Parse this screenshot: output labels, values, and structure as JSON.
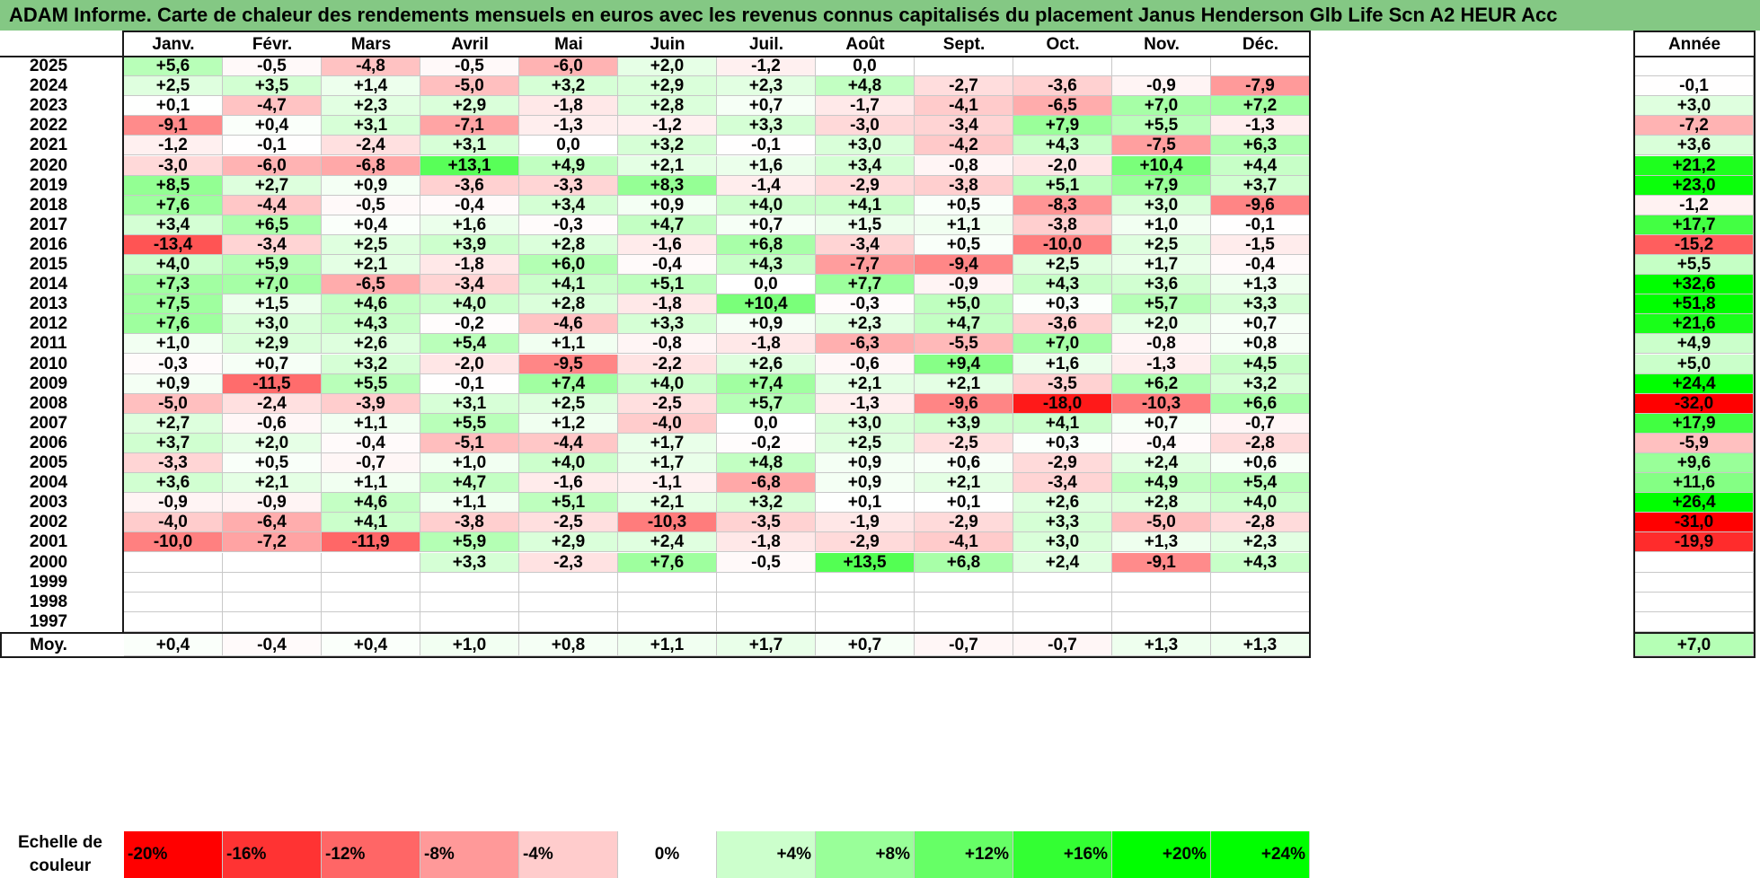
{
  "chart_data": {
    "type": "heatmap",
    "title": "ADAM Informe. Carte de chaleur des rendements mensuels en euros avec les revenus connus capitalisés du placement Janus Henderson Glb Life Scn A2 HEUR Acc",
    "months": [
      "Janv.",
      "Févr.",
      "Mars",
      "Avril",
      "Mai",
      "Juin",
      "Juil.",
      "Août",
      "Sept.",
      "Oct.",
      "Nov.",
      "Déc."
    ],
    "annual_header": "Année",
    "rows": [
      {
        "year": "2025",
        "values": [
          5.6,
          -0.5,
          -4.8,
          -0.5,
          -6.0,
          2.0,
          -1.2,
          0.0,
          null,
          null,
          null,
          null
        ],
        "annual": null
      },
      {
        "year": "2024",
        "values": [
          2.5,
          3.5,
          1.4,
          -5.0,
          3.2,
          2.9,
          2.3,
          4.8,
          -2.7,
          -3.6,
          -0.9,
          -7.9
        ],
        "annual": -0.1
      },
      {
        "year": "2023",
        "values": [
          0.1,
          -4.7,
          2.3,
          2.9,
          -1.8,
          2.8,
          0.7,
          -1.7,
          -4.1,
          -6.5,
          7.0,
          7.2
        ],
        "annual": 3.0
      },
      {
        "year": "2022",
        "values": [
          -9.1,
          0.4,
          3.1,
          -7.1,
          -1.3,
          -1.2,
          3.3,
          -3.0,
          -3.4,
          7.9,
          5.5,
          -1.3
        ],
        "annual": -7.2
      },
      {
        "year": "2021",
        "values": [
          -1.2,
          -0.1,
          -2.4,
          3.1,
          0.0,
          3.2,
          -0.1,
          3.0,
          -4.2,
          4.3,
          -7.5,
          6.3
        ],
        "annual": 3.6
      },
      {
        "year": "2020",
        "values": [
          -3.0,
          -6.0,
          -6.8,
          13.1,
          4.9,
          2.1,
          1.6,
          3.4,
          -0.8,
          -2.0,
          10.4,
          4.4
        ],
        "annual": 21.2
      },
      {
        "year": "2019",
        "values": [
          8.5,
          2.7,
          0.9,
          -3.6,
          -3.3,
          8.3,
          -1.4,
          -2.9,
          -3.8,
          5.1,
          7.9,
          3.7
        ],
        "annual": 23.0
      },
      {
        "year": "2018",
        "values": [
          7.6,
          -4.4,
          -0.5,
          -0.4,
          3.4,
          0.9,
          4.0,
          4.1,
          0.5,
          -8.3,
          3.0,
          -9.6
        ],
        "annual": -1.2
      },
      {
        "year": "2017",
        "values": [
          3.4,
          6.5,
          0.4,
          1.6,
          -0.3,
          4.7,
          0.7,
          1.5,
          1.1,
          -3.8,
          1.0,
          -0.1
        ],
        "annual": 17.7
      },
      {
        "year": "2016",
        "values": [
          -13.4,
          -3.4,
          2.5,
          3.9,
          2.8,
          -1.6,
          6.8,
          -3.4,
          0.5,
          -10.0,
          2.5,
          -1.5
        ],
        "annual": -15.2
      },
      {
        "year": "2015",
        "values": [
          4.0,
          5.9,
          2.1,
          -1.8,
          6.0,
          -0.4,
          4.3,
          -7.7,
          -9.4,
          2.5,
          1.7,
          -0.4
        ],
        "annual": 5.5
      },
      {
        "year": "2014",
        "values": [
          7.3,
          7.0,
          -6.5,
          -3.4,
          4.1,
          5.1,
          0.0,
          7.7,
          -0.9,
          4.3,
          3.6,
          1.3
        ],
        "annual": 32.6
      },
      {
        "year": "2013",
        "values": [
          7.5,
          1.5,
          4.6,
          4.0,
          2.8,
          -1.8,
          10.4,
          -0.3,
          5.0,
          0.3,
          5.7,
          3.3
        ],
        "annual": 51.8
      },
      {
        "year": "2012",
        "values": [
          7.6,
          3.0,
          4.3,
          -0.2,
          -4.6,
          3.3,
          0.9,
          2.3,
          4.7,
          -3.6,
          2.0,
          0.7
        ],
        "annual": 21.6
      },
      {
        "year": "2011",
        "values": [
          1.0,
          2.9,
          2.6,
          5.4,
          1.1,
          -0.8,
          -1.8,
          -6.3,
          -5.5,
          7.0,
          -0.8,
          0.8
        ],
        "annual": 4.9
      },
      {
        "year": "2010",
        "values": [
          -0.3,
          0.7,
          3.2,
          -2.0,
          -9.5,
          -2.2,
          2.6,
          -0.6,
          9.4,
          1.6,
          -1.3,
          4.5
        ],
        "annual": 5.0
      },
      {
        "year": "2009",
        "values": [
          0.9,
          -11.5,
          5.5,
          -0.1,
          7.4,
          4.0,
          7.4,
          2.1,
          2.1,
          -3.5,
          6.2,
          3.2
        ],
        "annual": 24.4
      },
      {
        "year": "2008",
        "values": [
          -5.0,
          -2.4,
          -3.9,
          3.1,
          2.5,
          -2.5,
          5.7,
          -1.3,
          -9.6,
          -18.0,
          -10.3,
          6.6
        ],
        "annual": -32.0
      },
      {
        "year": "2007",
        "values": [
          2.7,
          -0.6,
          1.1,
          5.5,
          1.2,
          -4.0,
          0.0,
          3.0,
          3.9,
          4.1,
          0.7,
          -0.7
        ],
        "annual": 17.9
      },
      {
        "year": "2006",
        "values": [
          3.7,
          2.0,
          -0.4,
          -5.1,
          -4.4,
          1.7,
          -0.2,
          2.5,
          -2.5,
          0.3,
          -0.4,
          -2.8
        ],
        "annual": -5.9
      },
      {
        "year": "2005",
        "values": [
          -3.3,
          0.5,
          -0.7,
          1.0,
          4.0,
          1.7,
          4.8,
          0.9,
          0.6,
          -2.9,
          2.4,
          0.6
        ],
        "annual": 9.6
      },
      {
        "year": "2004",
        "values": [
          3.6,
          2.1,
          1.1,
          4.7,
          -1.6,
          -1.1,
          -6.8,
          0.9,
          2.1,
          -3.4,
          4.9,
          5.4
        ],
        "annual": 11.6
      },
      {
        "year": "2003",
        "values": [
          -0.9,
          -0.9,
          4.6,
          1.1,
          5.1,
          2.1,
          3.2,
          0.1,
          0.1,
          2.6,
          2.8,
          4.0
        ],
        "annual": 26.4
      },
      {
        "year": "2002",
        "values": [
          -4.0,
          -6.4,
          4.1,
          -3.8,
          -2.5,
          -10.3,
          -3.5,
          -1.9,
          -2.9,
          3.3,
          -5.0,
          -2.8
        ],
        "annual": -31.0
      },
      {
        "year": "2001",
        "values": [
          -10.0,
          -7.2,
          -11.9,
          5.9,
          2.9,
          2.4,
          -1.8,
          -2.9,
          -4.1,
          3.0,
          1.3,
          2.3
        ],
        "annual": -19.9
      },
      {
        "year": "2000",
        "values": [
          null,
          null,
          null,
          3.3,
          -2.3,
          7.6,
          -0.5,
          13.5,
          6.8,
          2.4,
          -9.1,
          4.3
        ],
        "annual": null
      },
      {
        "year": "1999",
        "values": [
          null,
          null,
          null,
          null,
          null,
          null,
          null,
          null,
          null,
          null,
          null,
          null
        ],
        "annual": null
      },
      {
        "year": "1998",
        "values": [
          null,
          null,
          null,
          null,
          null,
          null,
          null,
          null,
          null,
          null,
          null,
          null
        ],
        "annual": null
      },
      {
        "year": "1997",
        "values": [
          null,
          null,
          null,
          null,
          null,
          null,
          null,
          null,
          null,
          null,
          null,
          null
        ],
        "annual": null
      }
    ],
    "average": {
      "label": "Moy.",
      "values": [
        0.4,
        -0.4,
        0.4,
        1.0,
        0.8,
        1.1,
        1.7,
        0.7,
        -0.7,
        -0.7,
        1.3,
        1.3
      ],
      "annual": 7.0
    },
    "color_scale": {
      "label": "Echelle de couleur",
      "stops": [
        {
          "label": "-20%",
          "value": -20,
          "color": "#ff0000"
        },
        {
          "label": "-16%",
          "value": -16,
          "color": "#ff3333"
        },
        {
          "label": "-12%",
          "value": -12,
          "color": "#ff6666"
        },
        {
          "label": "-8%",
          "value": -8,
          "color": "#ff9999"
        },
        {
          "label": "-4%",
          "value": -4,
          "color": "#ffcccc"
        },
        {
          "label": "0%",
          "value": 0,
          "color": "#ffffff"
        },
        {
          "label": "+4%",
          "value": 4,
          "color": "#ccffcc"
        },
        {
          "label": "+8%",
          "value": 8,
          "color": "#99ff99"
        },
        {
          "label": "+12%",
          "value": 12,
          "color": "#66ff66"
        },
        {
          "label": "+16%",
          "value": 16,
          "color": "#33ff33"
        },
        {
          "label": "+20%",
          "value": 20,
          "color": "#00ff00"
        },
        {
          "label": "+24%",
          "value": 24,
          "color": "#00ff00"
        }
      ]
    },
    "colors": {
      "title_bar": "#84c884",
      "negative_max": "#ff0000",
      "positive_max": "#00ff00",
      "neutral": "#ffffff"
    }
  }
}
